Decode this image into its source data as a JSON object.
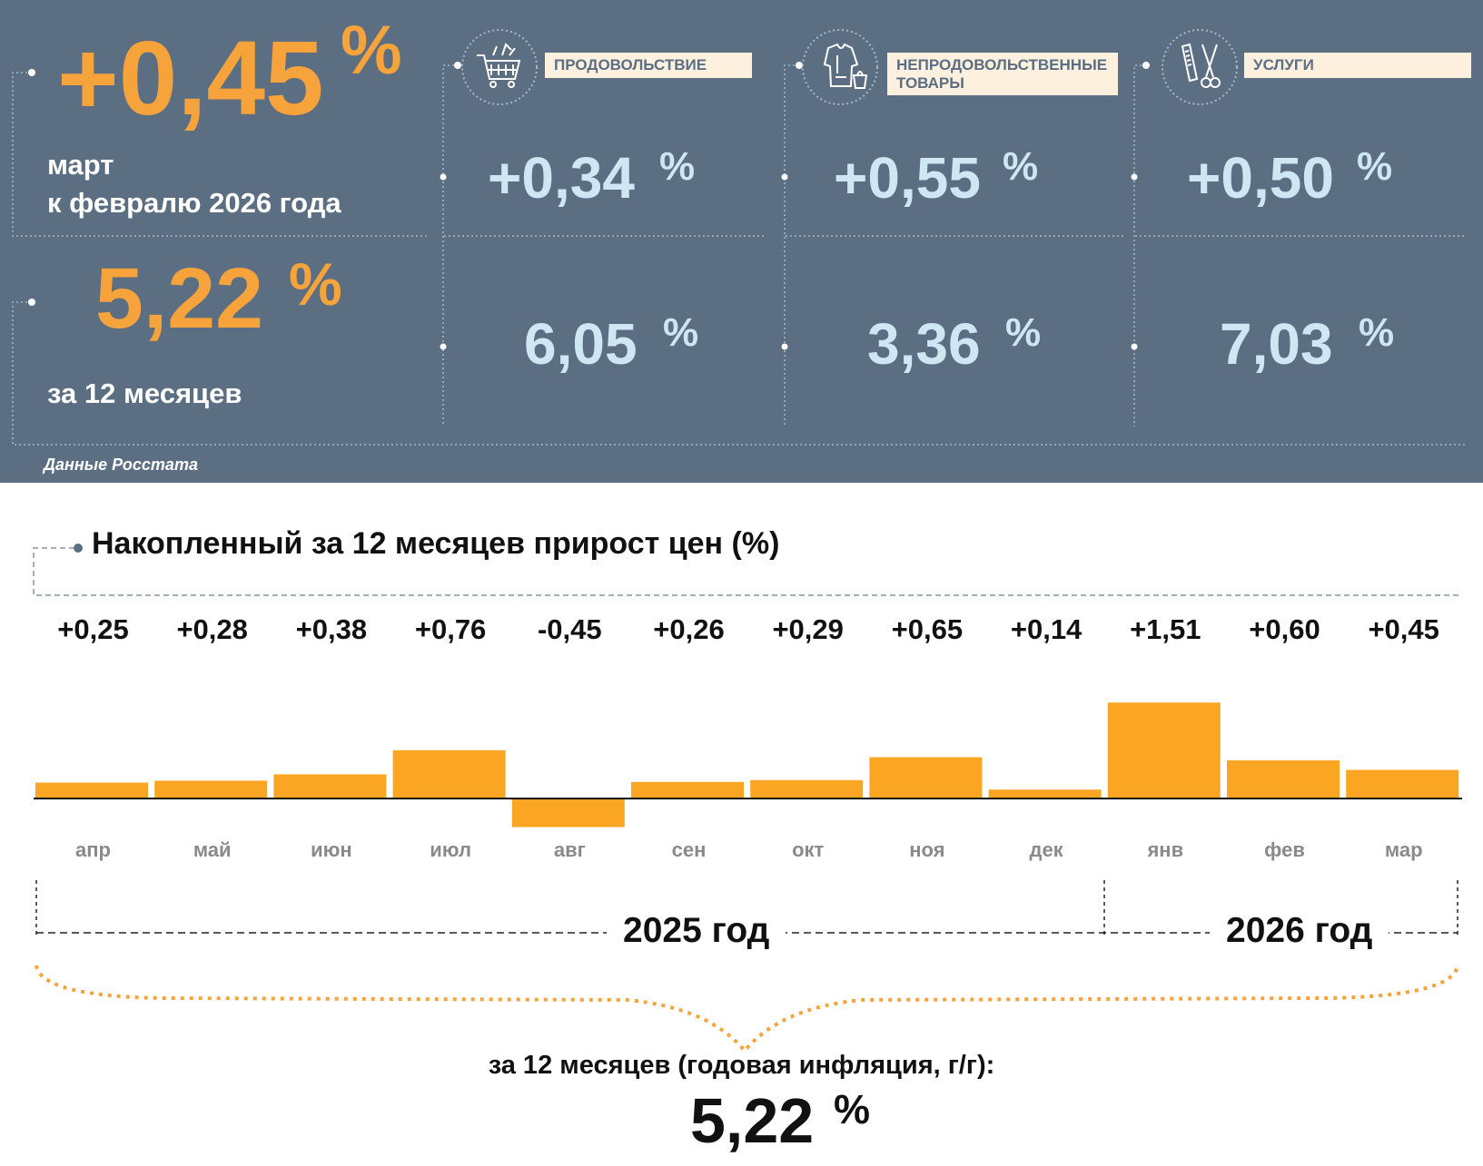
{
  "header": {
    "monthly": {
      "value": "+0,45",
      "unit": "%",
      "line1": "март",
      "line2": "к февралю 2026 года"
    },
    "annual": {
      "value": "5,22",
      "unit": "%",
      "label": "за 12 месяцев"
    },
    "categories": [
      {
        "name": "ПРОДОВОЛЬСТВИЕ",
        "icon": "shopping-cart-icon",
        "monthly": "+0,34",
        "annual": "6,05",
        "unit": "%"
      },
      {
        "name": "НЕПРОДОВОЛЬСТВЕННЫЕ ТОВАРЫ",
        "icon": "clothing-icon",
        "monthly": "+0,55",
        "annual": "3,36",
        "unit": "%"
      },
      {
        "name": "УСЛУГИ",
        "icon": "scissors-comb-icon",
        "monthly": "+0,50",
        "annual": "7,03",
        "unit": "%"
      }
    ],
    "source": "Данные Росстата"
  },
  "colors": {
    "panel": "#5b6e82",
    "accent": "#f7a33c",
    "value_blue": "#cfe6f3",
    "bar": "#fba622",
    "tag_bg": "#fdf0df"
  },
  "chart_data": {
    "type": "bar",
    "title": "Накопленный за 12 месяцев прирост цен (%)",
    "categories": [
      "апр",
      "май",
      "июн",
      "июл",
      "авг",
      "сен",
      "окт",
      "ноя",
      "дек",
      "янв",
      "фев",
      "мар"
    ],
    "values": [
      0.25,
      0.28,
      0.38,
      0.76,
      -0.45,
      0.26,
      0.29,
      0.65,
      0.14,
      1.51,
      0.6,
      0.45
    ],
    "data_labels": [
      "+0,25",
      "+0,28",
      "+0,38",
      "+0,76",
      "-0,45",
      "+0,26",
      "+0,29",
      "+0,65",
      "+0,14",
      "+1,51",
      "+0,60",
      "+0,45"
    ],
    "years": [
      {
        "label": "2025 год",
        "months": [
          "апр",
          "май",
          "июн",
          "июл",
          "авг",
          "сен",
          "окт",
          "ноя",
          "дек"
        ]
      },
      {
        "label": "2026 год",
        "months": [
          "янв",
          "фев",
          "мар"
        ]
      }
    ],
    "annual_label": "за 12 месяцев (годовая инфляция, г/г):",
    "annual_value": "5,22",
    "annual_unit": "%",
    "grid": false,
    "legend": "none"
  }
}
